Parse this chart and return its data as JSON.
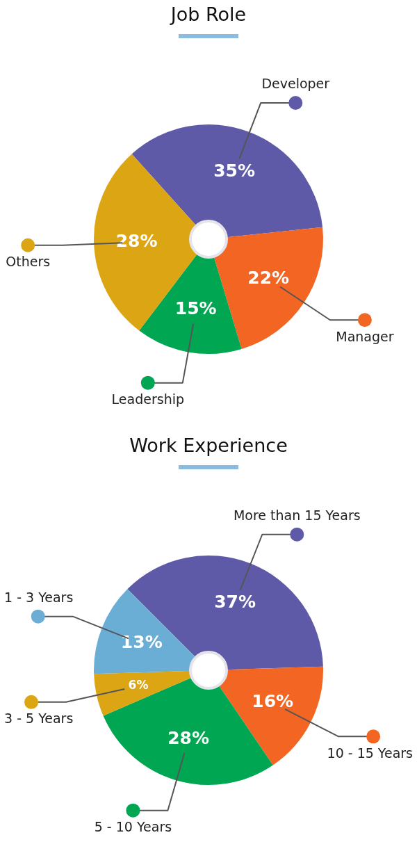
{
  "chart_data": [
    {
      "type": "pie",
      "legend": "bottom",
      "title": "Job Role",
      "categories": [
        "Developer",
        "Manager",
        "Leadership",
        "Others"
      ],
      "values": [
        35,
        22,
        15,
        28
      ],
      "value_labels": [
        "35%",
        "22%",
        "15%",
        "28%"
      ],
      "colors": [
        "#5f5aa8",
        "#f26522",
        "#00a651",
        "#dba514"
      ]
    },
    {
      "type": "pie",
      "legend": "bottom",
      "title": "Work Experience",
      "categories": [
        "More than 15 Years",
        "10 - 15 Years",
        "5 - 10 Years",
        "3 - 5 Years",
        "1 - 3 Years"
      ],
      "values": [
        37,
        16,
        28,
        6,
        13
      ],
      "value_labels": [
        "37%",
        "16%",
        "28%",
        "6%",
        "13%"
      ],
      "colors": [
        "#5f5aa8",
        "#f26522",
        "#00a651",
        "#dba514",
        "#6aaed6"
      ]
    }
  ]
}
